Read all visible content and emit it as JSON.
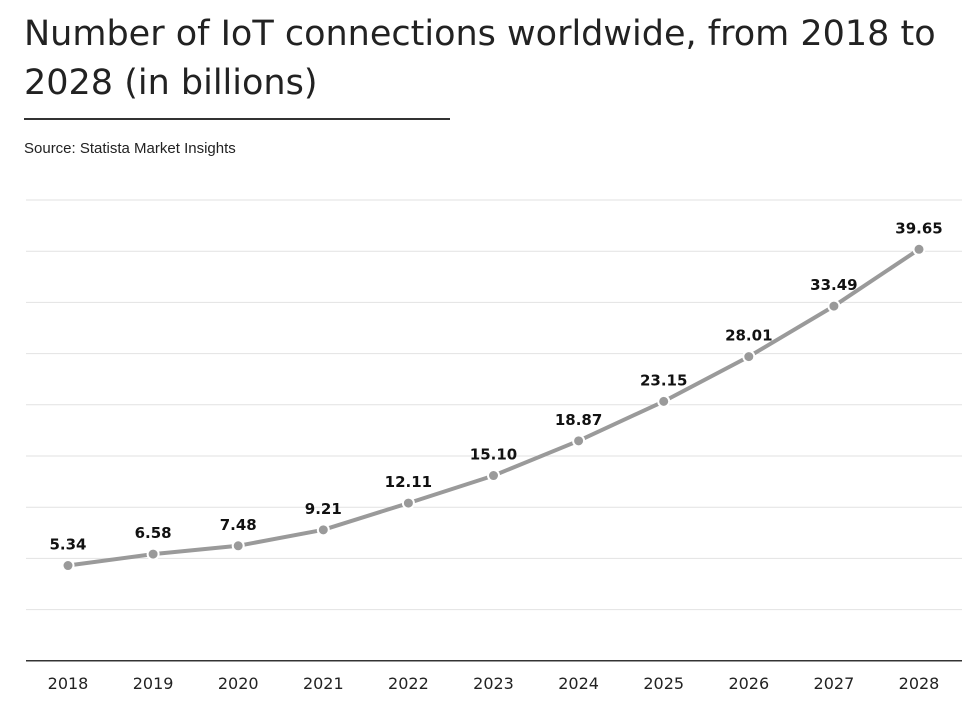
{
  "chart_data": {
    "type": "line",
    "title": "Number of IoT connections worldwide, from 2018 to 2028 (in billions)",
    "source": "Source: Statista Market Insights",
    "xlabel": "",
    "ylabel": "",
    "categories": [
      "2018",
      "2019",
      "2020",
      "2021",
      "2022",
      "2023",
      "2024",
      "2025",
      "2026",
      "2027",
      "2028"
    ],
    "values": [
      5.34,
      6.58,
      7.48,
      9.21,
      12.11,
      15.1,
      18.87,
      23.15,
      28.01,
      33.49,
      39.65
    ],
    "value_labels": [
      "5.34",
      "6.58",
      "7.48",
      "9.21",
      "12.11",
      "15.10",
      "18.87",
      "23.15",
      "28.01",
      "33.49",
      "39.65"
    ],
    "ylim": [
      -5,
      45
    ],
    "grid": true,
    "gridline_count": 9,
    "legend": "none",
    "colors": {
      "line": "#9a9a9a",
      "grid": "#e2e2e2",
      "axis": "#333333",
      "text": "#222222"
    }
  }
}
